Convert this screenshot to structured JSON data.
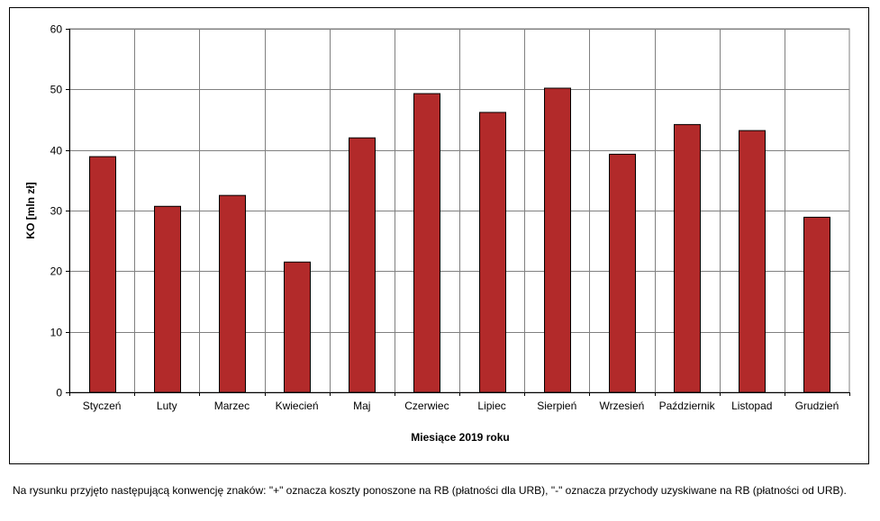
{
  "chart_data": {
    "type": "bar",
    "categories": [
      "Styczeń",
      "Luty",
      "Marzec",
      "Kwiecień",
      "Maj",
      "Czerwiec",
      "Lipiec",
      "Sierpień",
      "Wrzesień",
      "Październik",
      "Listopad",
      "Grudzień"
    ],
    "values": [
      38.9,
      30.7,
      32.5,
      21.5,
      42.0,
      49.3,
      46.2,
      50.2,
      39.3,
      44.2,
      43.2,
      28.9
    ],
    "xlabel": "Miesiące 2019  roku",
    "ylabel": "KO [mln zł]",
    "ylim": [
      0,
      60
    ],
    "yticks": [
      0,
      10,
      20,
      30,
      40,
      50,
      60
    ],
    "grid": true,
    "legend": "none",
    "bar_color": "#b22a2a",
    "plot_background": "#ffffff",
    "grid_color": "#808080"
  },
  "footnote": "Na rysunku przyjęto następującą konwencję znaków: \"+\" oznacza koszty ponoszone na RB (płatności dla URB), \"-\" oznacza przychody uzyskiwane na RB (płatności od URB)."
}
